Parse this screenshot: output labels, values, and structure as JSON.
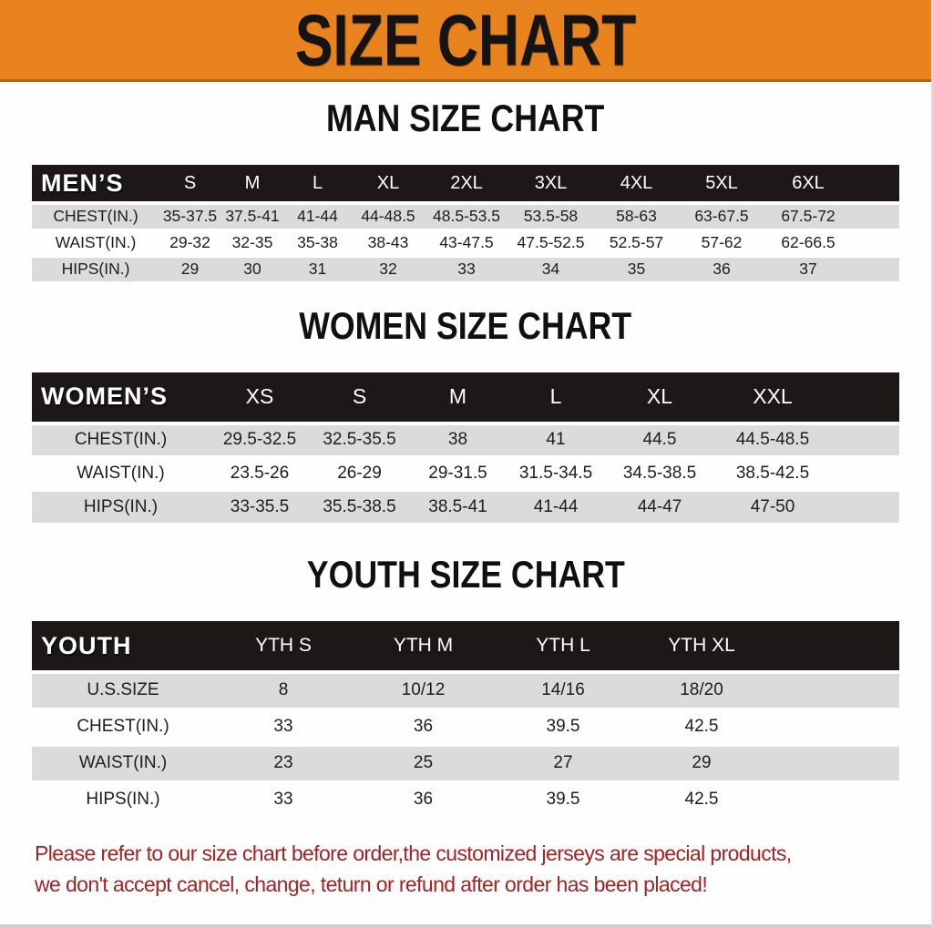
{
  "banner": {
    "title": "SIZE CHART"
  },
  "sections": [
    {
      "title": "MAN SIZE CHART",
      "header_label": "MEN’S",
      "columns": [
        "S",
        "M",
        "L",
        "XL",
        "2XL",
        "3XL",
        "4XL",
        "5XL",
        "6XL"
      ],
      "rows": [
        {
          "label": "CHEST(IN.)",
          "values": [
            "35-37.5",
            "37.5-41",
            "41-44",
            "44-48.5",
            "48.5-53.5",
            "53.5-58",
            "58-63",
            "63-67.5",
            "67.5-72"
          ]
        },
        {
          "label": "WAIST(IN.)",
          "values": [
            "29-32",
            "32-35",
            "35-38",
            "38-43",
            "43-47.5",
            "47.5-52.5",
            "52.5-57",
            "57-62",
            "62-66.5"
          ]
        },
        {
          "label": "HIPS(IN.)",
          "values": [
            "29",
            "30",
            "31",
            "32",
            "33",
            "34",
            "35",
            "36",
            "37"
          ]
        }
      ]
    },
    {
      "title": "WOMEN SIZE CHART",
      "header_label": "WOMEN’S",
      "columns": [
        "XS",
        "S",
        "M",
        "L",
        "XL",
        "XXL"
      ],
      "rows": [
        {
          "label": "CHEST(IN.)",
          "values": [
            "29.5-32.5",
            "32.5-35.5",
            "38",
            "41",
            "44.5",
            "44.5-48.5"
          ]
        },
        {
          "label": "WAIST(IN.)",
          "values": [
            "23.5-26",
            "26-29",
            "29-31.5",
            "31.5-34.5",
            "34.5-38.5",
            "38.5-42.5"
          ]
        },
        {
          "label": "HIPS(IN.)",
          "values": [
            "33-35.5",
            "35.5-38.5",
            "38.5-41",
            "41-44",
            "44-47",
            "47-50"
          ]
        }
      ]
    },
    {
      "title": "YOUTH SIZE CHART",
      "header_label": "YOUTH",
      "columns": [
        "YTH S",
        "YTH M",
        "YTH L",
        "YTH XL"
      ],
      "rows": [
        {
          "label": "U.S.SIZE",
          "values": [
            "8",
            "10/12",
            "14/16",
            "18/20"
          ]
        },
        {
          "label": "CHEST(IN.)",
          "values": [
            "33",
            "36",
            "39.5",
            "42.5"
          ]
        },
        {
          "label": "WAIST(IN.)",
          "values": [
            "23",
            "25",
            "27",
            "29"
          ]
        },
        {
          "label": "HIPS(IN.)",
          "values": [
            "33",
            "36",
            "39.5",
            "42.5"
          ]
        }
      ]
    }
  ],
  "footer": {
    "line1": "Please refer to our size chart before order,the customized jerseys are special products,",
    "line2": "we don't accept cancel, change, teturn or refund after order has been placed!"
  },
  "colors": {
    "banner_bg": "#E8831D",
    "banner_text": "#141414",
    "header_row_bg": "#1B1817",
    "header_row_text": "#FFFFFF",
    "row_alt_bg": "#DBDBDB",
    "body_text": "#1D1D1D",
    "notice_text": "#A32222",
    "page_bg": "#FEFEFE"
  }
}
